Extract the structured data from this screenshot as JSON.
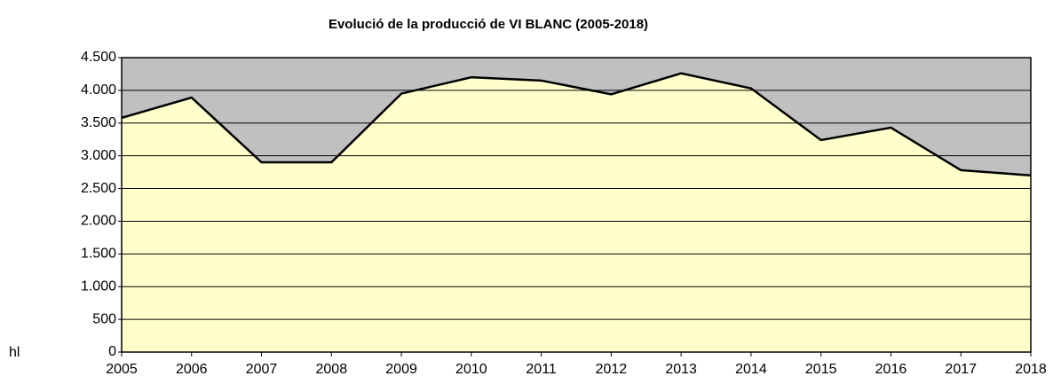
{
  "chart_data": {
    "type": "area",
    "title": "Evolució de la producció de VI BLANC (2005-2018)",
    "ylabel": "hl",
    "categories": [
      "2005",
      "2006",
      "2007",
      "2008",
      "2009",
      "2010",
      "2011",
      "2012",
      "2013",
      "2014",
      "2015",
      "2016",
      "2017",
      "2018"
    ],
    "values": [
      3580,
      3890,
      2900,
      2900,
      3950,
      4200,
      4150,
      3940,
      4260,
      4030,
      3240,
      3430,
      2780,
      2700
    ],
    "color": "#ffffcc",
    "line_color": "#000000",
    "background": "#c0c0c0",
    "ylim": [
      0,
      4500
    ],
    "yticks": [
      0,
      500,
      {
        "value": 1000,
        "label": "1.000"
      },
      {
        "value": 1500,
        "label": "1.500"
      },
      {
        "value": 2000,
        "label": "2.000"
      },
      {
        "value": 2500,
        "label": "2.500"
      },
      {
        "value": 3000,
        "label": "3.000"
      },
      {
        "value": 3500,
        "label": "3.500"
      },
      {
        "value": 4000,
        "label": "4.000"
      },
      {
        "value": 4500,
        "label": "4.500"
      }
    ],
    "grid": true
  }
}
